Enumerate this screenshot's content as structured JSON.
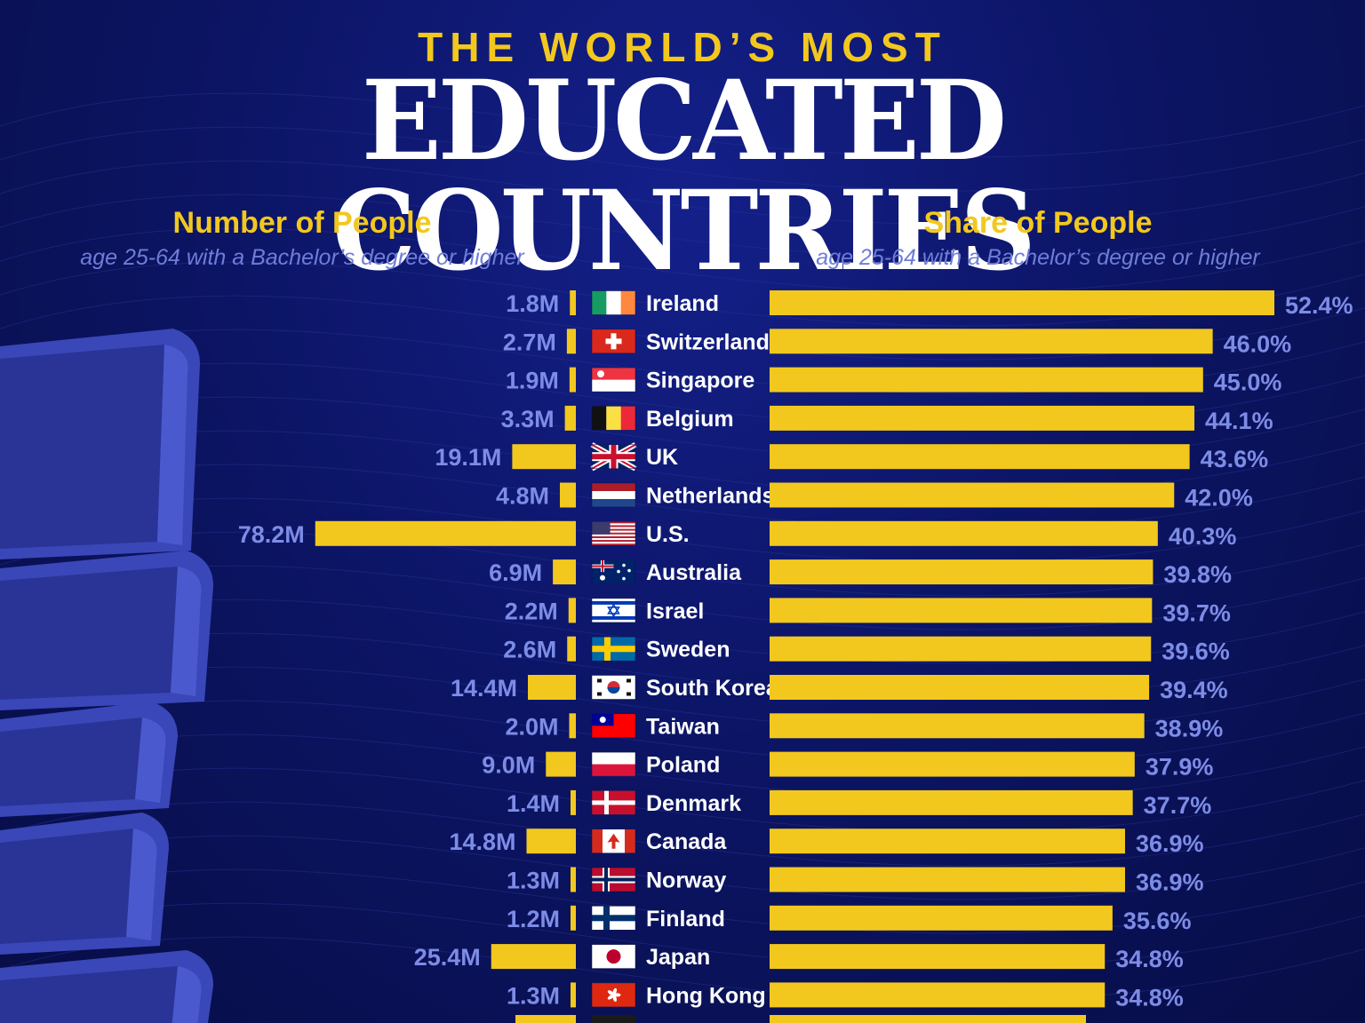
{
  "header": {
    "kicker": "THE WORLD’S MOST",
    "title": "EDUCATED COUNTRIES"
  },
  "left_panel": {
    "heading": "Number of People",
    "subheading": "age 25-64 with a Bachelor’s degree or higher"
  },
  "right_panel": {
    "heading": "Share of People",
    "subheading": "age 25-64 with a Bachelor’s degree or higher"
  },
  "colors": {
    "bar": "#f2c81e",
    "value_text": "#7d8ce6",
    "country_text": "#ffffff",
    "heading": "#f2c81e",
    "subheading": "#6f7dd8",
    "background": "#0c1566"
  },
  "chart_data": [
    {
      "type": "bar",
      "orientation": "horizontal",
      "direction": "right-to-left",
      "title": "Number of People",
      "subtitle": "age 25-64 with a Bachelor’s degree or higher",
      "unit_suffix": "M",
      "categories": [
        "Ireland",
        "Switzerland",
        "Singapore",
        "Belgium",
        "UK",
        "Netherlands",
        "U.S.",
        "Australia",
        "Israel",
        "Sweden",
        "South Korea",
        "Taiwan",
        "Poland",
        "Denmark",
        "Canada",
        "Norway",
        "Finland",
        "Japan",
        "Hong Kong"
      ],
      "values": [
        1.8,
        2.7,
        1.9,
        3.3,
        19.1,
        4.8,
        78.2,
        6.9,
        2.2,
        2.6,
        14.4,
        2.0,
        9.0,
        1.4,
        14.8,
        1.3,
        1.2,
        25.4,
        1.3
      ],
      "labels": [
        "1.8M",
        "2.7M",
        "1.9M",
        "3.3M",
        "19.1M",
        "4.8M",
        "78.2M",
        "6.9M",
        "2.2M",
        "2.6M",
        "14.4M",
        "2.0M",
        "9.0M",
        "1.4M",
        "14.8M",
        "1.3M",
        "1.2M",
        "25.4M",
        "1.3M"
      ],
      "xlim": [
        0,
        80
      ]
    },
    {
      "type": "bar",
      "orientation": "horizontal",
      "direction": "left-to-right",
      "title": "Share of People",
      "subtitle": "age 25-64 with a Bachelor’s degree or higher",
      "unit_suffix": "%",
      "categories": [
        "Ireland",
        "Switzerland",
        "Singapore",
        "Belgium",
        "UK",
        "Netherlands",
        "U.S.",
        "Australia",
        "Israel",
        "Sweden",
        "South Korea",
        "Taiwan",
        "Poland",
        "Denmark",
        "Canada",
        "Norway",
        "Finland",
        "Japan",
        "Hong Kong"
      ],
      "values": [
        52.4,
        46.0,
        45.0,
        44.1,
        43.6,
        42.0,
        40.3,
        39.8,
        39.7,
        39.6,
        39.4,
        38.9,
        37.9,
        37.7,
        36.9,
        36.9,
        35.6,
        34.8,
        34.8
      ],
      "labels": [
        "52.4%",
        "46.0%",
        "45.0%",
        "44.1%",
        "43.6%",
        "42.0%",
        "40.3%",
        "39.8%",
        "39.7%",
        "39.6%",
        "39.4%",
        "38.9%",
        "37.9%",
        "37.7%",
        "36.9%",
        "36.9%",
        "35.6%",
        "34.8%",
        "34.8%"
      ],
      "xlim": [
        0,
        52.4
      ]
    }
  ],
  "flag_icons": [
    "ireland-flag-icon",
    "switzerland-flag-icon",
    "singapore-flag-icon",
    "belgium-flag-icon",
    "uk-flag-icon",
    "netherlands-flag-icon",
    "us-flag-icon",
    "australia-flag-icon",
    "israel-flag-icon",
    "sweden-flag-icon",
    "south-korea-flag-icon",
    "taiwan-flag-icon",
    "poland-flag-icon",
    "denmark-flag-icon",
    "canada-flag-icon",
    "norway-flag-icon",
    "finland-flag-icon",
    "japan-flag-icon",
    "hong-kong-flag-icon"
  ],
  "decoration": "stacked-books-illustration"
}
